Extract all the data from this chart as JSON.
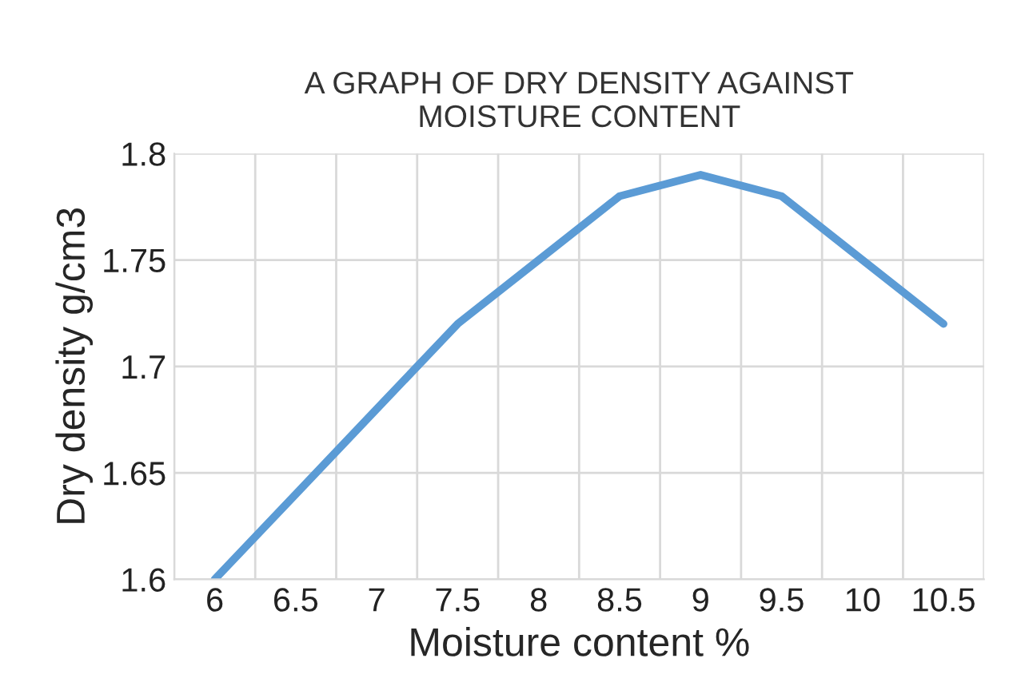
{
  "chart_data": {
    "type": "line",
    "title": "A GRAPH OF DRY DENSITY AGAINST\nMOISTURE CONTENT",
    "xlabel": "Moisture content %",
    "ylabel": "Dry density g/cm3",
    "categories": [
      "6",
      "6.5",
      "7",
      "7.5",
      "8",
      "8.5",
      "9",
      "9.5",
      "10",
      "10.5"
    ],
    "series": [
      {
        "color": "#5b9bd5",
        "values": [
          1.6,
          1.64,
          1.68,
          1.72,
          1.75,
          1.78,
          1.79,
          1.78,
          1.75,
          1.72
        ]
      }
    ],
    "ylim": [
      1.6,
      1.8
    ],
    "yticks": [
      1.6,
      1.65,
      1.7,
      1.75,
      1.8
    ],
    "grid": true,
    "marker": "none",
    "line_style": "solid"
  }
}
